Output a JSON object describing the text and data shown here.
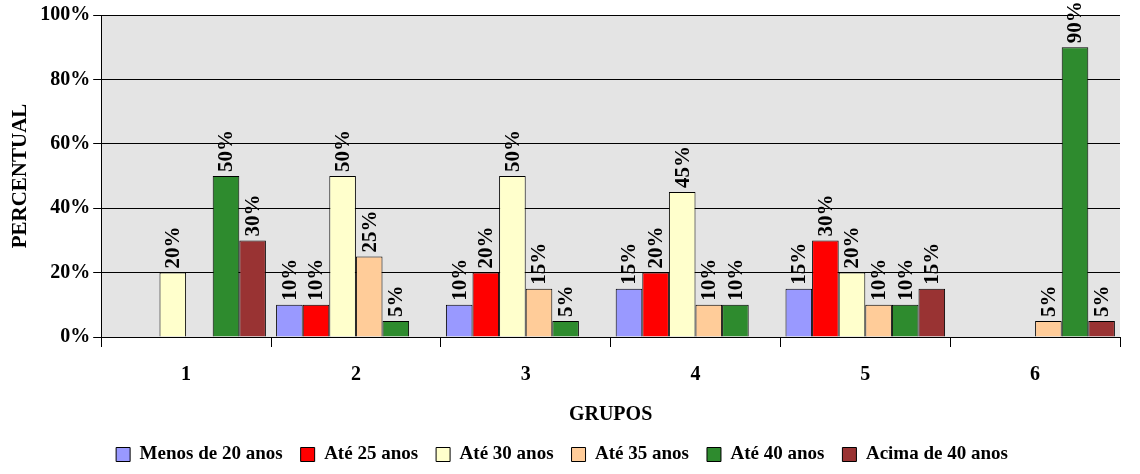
{
  "chart_data": {
    "type": "bar",
    "xlabel": "GRUPOS",
    "ylabel": "PERCENTUAL",
    "categories": [
      "1",
      "2",
      "3",
      "4",
      "5",
      "6"
    ],
    "ylim": [
      0,
      100
    ],
    "yticks": [
      {
        "value": 0,
        "label": "0%"
      },
      {
        "value": 20,
        "label": "20%"
      },
      {
        "value": 40,
        "label": "40%"
      },
      {
        "value": 60,
        "label": "60%"
      },
      {
        "value": 80,
        "label": "80%"
      },
      {
        "value": 100,
        "label": "100%"
      }
    ],
    "grid": "y",
    "legend": "bottom",
    "series": [
      {
        "name": "Menos de 20 anos",
        "color": "#9999ff",
        "values": [
          null,
          10,
          10,
          15,
          15,
          null
        ],
        "value_labels": [
          null,
          "10%",
          "10%",
          "15%",
          "15%",
          null
        ]
      },
      {
        "name": "Até 25 anos",
        "color": "#ff0000",
        "values": [
          null,
          10,
          20,
          20,
          30,
          null
        ],
        "value_labels": [
          null,
          "10%",
          "20%",
          "20%",
          "30%",
          null
        ]
      },
      {
        "name": "Até 30 anos",
        "color": "#ffffcc",
        "values": [
          20,
          50,
          50,
          45,
          20,
          null
        ],
        "value_labels": [
          "20%",
          "50%",
          "50%",
          "45%",
          "20%",
          null
        ]
      },
      {
        "name": "Até 35 anos",
        "color": "#ffcc99",
        "values": [
          null,
          25,
          15,
          10,
          10,
          5
        ],
        "value_labels": [
          null,
          "25%",
          "15%",
          "10%",
          "10%",
          "5%"
        ]
      },
      {
        "name": "Até 40 anos",
        "color": "#2e8b2e",
        "values": [
          50,
          5,
          5,
          10,
          10,
          90
        ],
        "value_labels": [
          "50%",
          "5%",
          "5%",
          "10%",
          "10%",
          "90%"
        ]
      },
      {
        "name": "Acima de 40 anos",
        "color": "#993333",
        "values": [
          30,
          null,
          null,
          null,
          15,
          5
        ],
        "value_labels": [
          "30%",
          null,
          null,
          null,
          "15%",
          "5%"
        ]
      }
    ]
  }
}
